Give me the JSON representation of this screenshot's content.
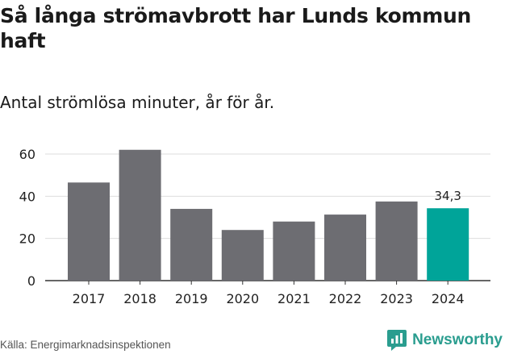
{
  "title": "Så långa strömavbrott har Lunds kommun haft",
  "subtitle": "Antal strömlösa minuter, år för år.",
  "source": "Källa: Energimarknadsinspektionen",
  "logo_text": "Newsworthy",
  "colors": {
    "bar": "#6d6d72",
    "highlight": "#00a499",
    "grid": "#dddddd",
    "logo": "#2a9d8f"
  },
  "chart_data": {
    "type": "bar",
    "categories": [
      "2017",
      "2018",
      "2019",
      "2020",
      "2021",
      "2022",
      "2023",
      "2024"
    ],
    "values": [
      46.5,
      62,
      34,
      24,
      28,
      31.3,
      37.5,
      34.3
    ],
    "highlight_index": 7,
    "data_labels": {
      "2024": "34,3"
    },
    "yticks": [
      0,
      20,
      40,
      60
    ],
    "ylim": [
      0,
      60
    ],
    "grid": true
  }
}
